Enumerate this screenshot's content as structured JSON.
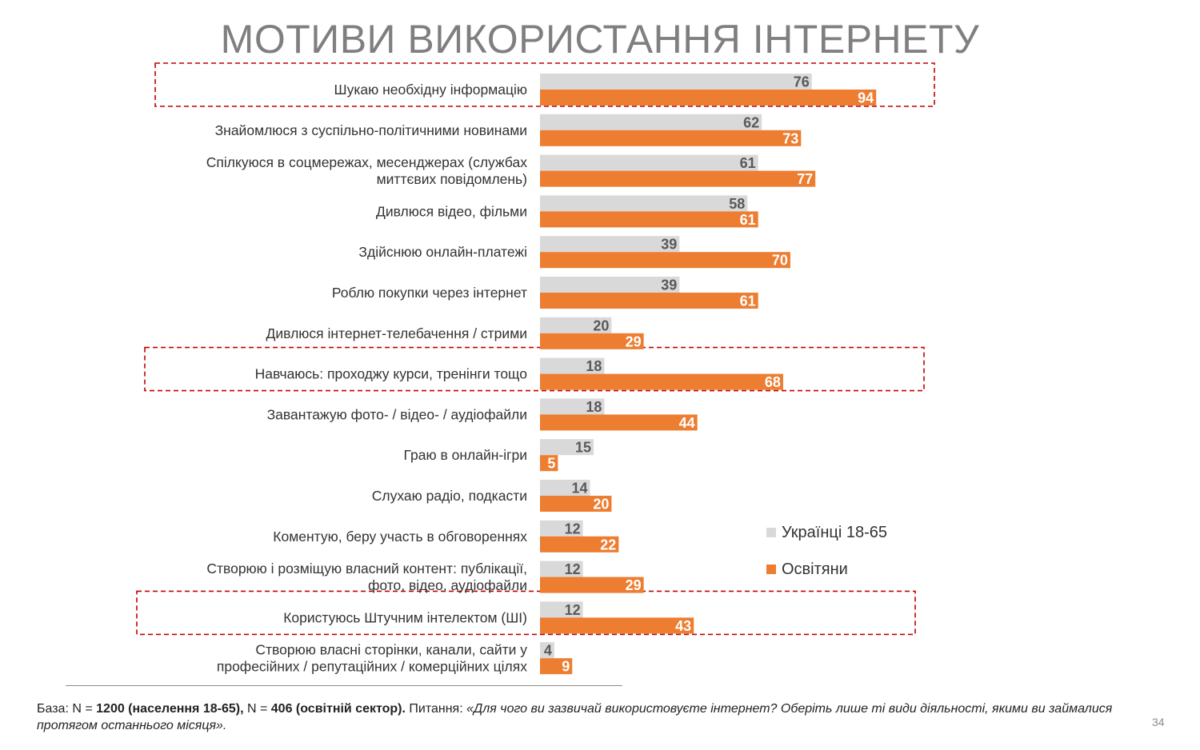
{
  "title": "МОТИВИ ВИКОРИСТАННЯ ІНТЕРНЕТУ",
  "chart_data": {
    "type": "bar",
    "orientation": "horizontal",
    "xlim": [
      0,
      100
    ],
    "grid": false,
    "legend_position": "right",
    "categories": [
      "Шукаю необхідну інформацію",
      "Знайомлюся з суспільно-політичними новинами",
      "Спілкуюся в соцмережах, месенджерах (службах миттєвих повідомлень)",
      "Дивлюся відео, фільми",
      "Здійснюю онлайн-платежі",
      "Роблю покупки через інтернет",
      "Дивлюся інтернет-телебачення / стрими",
      "Навчаюсь: проходжу курси, тренінги тощо",
      "Завантажую фото- / відео- / аудіофайли",
      "Граю в онлайн-ігри",
      "Слухаю радіо, подкасти",
      "Коментую, беру участь в обговореннях",
      "Створюю і розміщую власний контент: публікації, фото, відео, аудіофайли",
      "Користуюсь Штучним інтелектом (ШІ)",
      "Створюю власні сторінки, канали, сайти у професійних / репутаційних / комерційних цілях"
    ],
    "category_lines": [
      [
        "Шукаю необхідну інформацію"
      ],
      [
        "Знайомлюся з суспільно-політичними новинами"
      ],
      [
        "Спілкуюся в соцмережах, месенджерах (службах",
        "миттєвих повідомлень)"
      ],
      [
        "Дивлюся відео, фільми"
      ],
      [
        "Здійснюю онлайн-платежі"
      ],
      [
        "Роблю покупки через інтернет"
      ],
      [
        "Дивлюся інтернет-телебачення / стрими"
      ],
      [
        "Навчаюсь: проходжу курси, тренінги тощо"
      ],
      [
        "Завантажую фото- / відео- / аудіофайли"
      ],
      [
        "Граю в онлайн-ігри"
      ],
      [
        "Слухаю радіо, подкасти"
      ],
      [
        "Коментую, беру участь в обговореннях"
      ],
      [
        "Створюю і розміщую власний контент: публікації,",
        "фото, відео, аудіофайли"
      ],
      [
        "Користуюсь Штучним інтелектом (ШІ)"
      ],
      [
        "Створюю власні сторінки, канали, сайти у",
        "професійних / репутаційних / комерційних цілях"
      ]
    ],
    "series": [
      {
        "name": "Українці 18-65",
        "color": "#d9d9d9",
        "label_color": "#595959",
        "values": [
          76,
          62,
          61,
          58,
          39,
          39,
          20,
          18,
          18,
          15,
          14,
          12,
          12,
          12,
          4
        ]
      },
      {
        "name": "Освітяни",
        "color": "#ed7d31",
        "label_color": "#ffffff",
        "values": [
          94,
          73,
          77,
          61,
          70,
          61,
          29,
          68,
          44,
          5,
          20,
          22,
          29,
          43,
          9
        ]
      }
    ],
    "highlighted_categories": [
      0,
      7,
      13
    ],
    "highlight_color": "#c00000"
  },
  "footnote": {
    "prefix": "База: N = ",
    "n1": "1200 (населення 18-65),",
    "mid": " N = ",
    "n2": "406 (освітній сектор).",
    "q_label": " Питання: ",
    "question": "«Для чого ви зазвичай використовуєте інтернет? Оберіть лише ті види діяльності, якими ви займалися протягом останнього місяця»."
  },
  "page_number": "34"
}
